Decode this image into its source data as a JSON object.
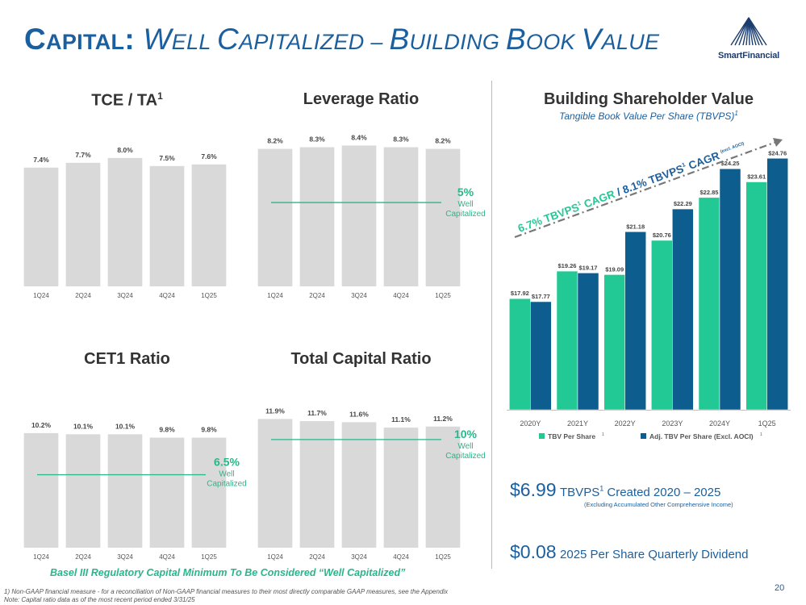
{
  "header": {
    "title_parts": [
      "C",
      "APITAL",
      ": ",
      "W",
      "ELL ",
      "C",
      "APITALIZED",
      " – ",
      "B",
      "UILDING ",
      "B",
      "OOK ",
      "V",
      "ALUE"
    ],
    "logo_text": "SmartFinancial"
  },
  "titles": {
    "tce": "TCE / TA",
    "tce_sup": "1",
    "leverage": "Leverage Ratio",
    "cet1": "CET1 Ratio",
    "total": "Total Capital Ratio",
    "shareholder": "Building Shareholder Value",
    "shareholder_sub": "Tangible Book Value Per Share (TBVPS)",
    "shareholder_sub_sup": "1"
  },
  "chart_data": [
    {
      "id": "tce",
      "type": "bar",
      "categories": [
        "1Q24",
        "2Q24",
        "3Q24",
        "4Q24",
        "1Q25"
      ],
      "values": [
        7.4,
        7.7,
        8.0,
        7.5,
        7.6
      ],
      "labels": [
        "7.4%",
        "7.7%",
        "8.0%",
        "7.5%",
        "7.6%"
      ],
      "title": "TCE / TA",
      "ylim": [
        0,
        9.3
      ],
      "color": "#d9d9d9"
    },
    {
      "id": "leverage",
      "type": "bar",
      "categories": [
        "1Q24",
        "2Q24",
        "3Q24",
        "4Q24",
        "1Q25"
      ],
      "values": [
        8.2,
        8.3,
        8.4,
        8.3,
        8.2
      ],
      "labels": [
        "8.2%",
        "8.3%",
        "8.4%",
        "8.3%",
        "8.2%"
      ],
      "title": "Leverage Ratio",
      "ylim": [
        0,
        8.9
      ],
      "threshold": {
        "value": 5,
        "label": "5%",
        "text1": "Well",
        "text2": "Capitalized"
      },
      "color": "#d9d9d9"
    },
    {
      "id": "cet1",
      "type": "bar",
      "categories": [
        "1Q24",
        "2Q24",
        "3Q24",
        "4Q24",
        "1Q25"
      ],
      "values": [
        10.2,
        10.1,
        10.1,
        9.8,
        9.8
      ],
      "labels": [
        "10.2%",
        "10.1%",
        "10.1%",
        "9.8%",
        "9.8%"
      ],
      "title": "CET1 Ratio",
      "ylim": [
        0,
        11.2
      ],
      "threshold": {
        "value": 6.5,
        "label": "6.5%",
        "text1": "Well",
        "text2": "Capitalized"
      },
      "color": "#d9d9d9"
    },
    {
      "id": "total",
      "type": "bar",
      "categories": [
        "1Q24",
        "2Q24",
        "3Q24",
        "4Q24",
        "1Q25"
      ],
      "values": [
        11.9,
        11.7,
        11.6,
        11.1,
        11.2
      ],
      "labels": [
        "11.9%",
        "11.7%",
        "11.6%",
        "11.1%",
        "11.2%"
      ],
      "title": "Total Capital Ratio",
      "ylim": [
        0,
        12.45
      ],
      "threshold": {
        "value": 10,
        "label": "10%",
        "text1": "Well",
        "text2": "Capitalized"
      },
      "color": "#d9d9d9"
    },
    {
      "id": "tbvps",
      "type": "bar",
      "categories": [
        "2020Y",
        "2021Y",
        "2022Y",
        "2023Y",
        "2024Y",
        "1Q25"
      ],
      "series": [
        {
          "name": "TBV Per Share",
          "values": [
            17.92,
            19.26,
            19.09,
            20.76,
            22.85,
            23.61
          ],
          "labels": [
            "$17.92",
            "$19.26",
            "$19.09",
            "$20.76",
            "$22.85",
            "$23.61"
          ],
          "color": "#22c994"
        },
        {
          "name": "Adj. TBV Per Share (Excl. AOCI)",
          "values": [
            17.77,
            19.17,
            21.18,
            22.29,
            24.25,
            24.76
          ],
          "labels": [
            "$17.77",
            "$19.17",
            "$21.18",
            "$22.29",
            "$24.25",
            "$24.76"
          ],
          "color": "#0d5e8e"
        }
      ],
      "legend_sup": "1",
      "title": "Building Shareholder Value",
      "ylim": [
        12.5,
        25.4
      ],
      "annotation": {
        "part1": "6.7% TBVPS",
        "part2": " CAGR / 8.1% TBVPS",
        "part3": " CAGR",
        "sup": "1",
        "note": "(excl. AOCI)"
      }
    }
  ],
  "basel_note": "Basel III Regulatory Capital Minimum To Be Considered “Well Capitalized”",
  "stats": {
    "tbvps_value": "$6.99",
    "tbvps_label": "TBVPS",
    "tbvps_sup": "1",
    "tbvps_text": " Created 2020 – 2025",
    "tbvps_note": "(Excluding Accumulated Other Comprehensive Income)",
    "dividend_value": "$0.08",
    "dividend_text": "2025 Per Share Quarterly Dividend"
  },
  "footnotes": {
    "line1": "1) Non-GAAP financial measure - for a reconciliation of Non-GAAP financial measures to their most directly comparable GAAP measures, see the Appendix",
    "line2": "Note: Capital ratio data as of the most recent period ended 3/31/25"
  },
  "page_number": "20",
  "colors": {
    "brand_blue": "#1b5f9e",
    "green": "#2bb58a",
    "bar_gray": "#d9d9d9",
    "teal": "#22c994",
    "navy": "#0d5e8e"
  }
}
